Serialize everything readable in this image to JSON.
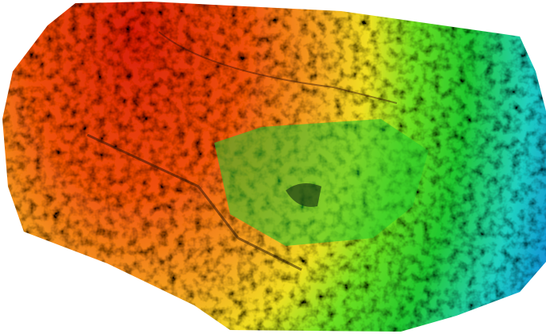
{
  "map": {
    "type": "elevation-hillshade",
    "color_ramp": [
      "#d81e0e",
      "#f0500f",
      "#f5a020",
      "#f0e020",
      "#70e020",
      "#20c830",
      "#20d0c0",
      "#1080e0",
      "#1030c0"
    ],
    "background": "#ffffff"
  }
}
